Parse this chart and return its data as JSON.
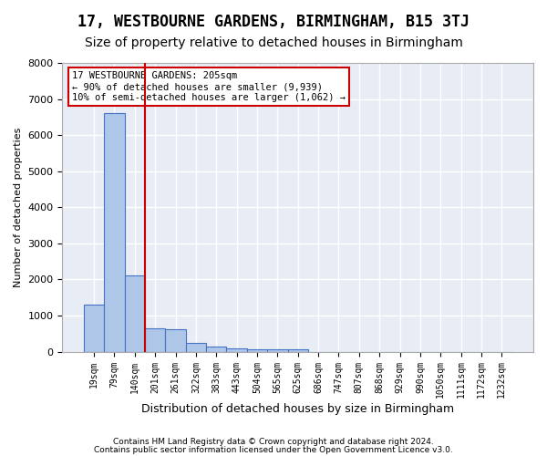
{
  "title": "17, WESTBOURNE GARDENS, BIRMINGHAM, B15 3TJ",
  "subtitle": "Size of property relative to detached houses in Birmingham",
  "xlabel": "Distribution of detached houses by size in Birmingham",
  "ylabel": "Number of detached properties",
  "footnote1": "Contains HM Land Registry data © Crown copyright and database right 2024.",
  "footnote2": "Contains public sector information licensed under the Open Government Licence v3.0.",
  "bin_labels": [
    "19sqm",
    "79sqm",
    "140sqm",
    "201sqm",
    "261sqm",
    "322sqm",
    "383sqm",
    "443sqm",
    "504sqm",
    "565sqm",
    "625sqm",
    "686sqm",
    "747sqm",
    "807sqm",
    "868sqm",
    "929sqm",
    "990sqm",
    "1050sqm",
    "1111sqm",
    "1172sqm",
    "1232sqm"
  ],
  "bar_values": [
    1300,
    6600,
    2100,
    650,
    630,
    250,
    130,
    100,
    75,
    60,
    60,
    0,
    0,
    0,
    0,
    0,
    0,
    0,
    0,
    0,
    0
  ],
  "bar_color": "#aec6e8",
  "bar_edge_color": "#4472c4",
  "property_line_color": "#cc0000",
  "annotation_text": "17 WESTBOURNE GARDENS: 205sqm\n← 90% of detached houses are smaller (9,939)\n10% of semi-detached houses are larger (1,062) →",
  "annotation_box_color": "#ffffff",
  "annotation_box_edge": "#cc0000",
  "ylim": [
    0,
    8000
  ],
  "plot_bg_color": "#e8ecf5",
  "grid_color": "#ffffff",
  "title_fontsize": 12,
  "subtitle_fontsize": 10,
  "tick_fontsize": 7
}
